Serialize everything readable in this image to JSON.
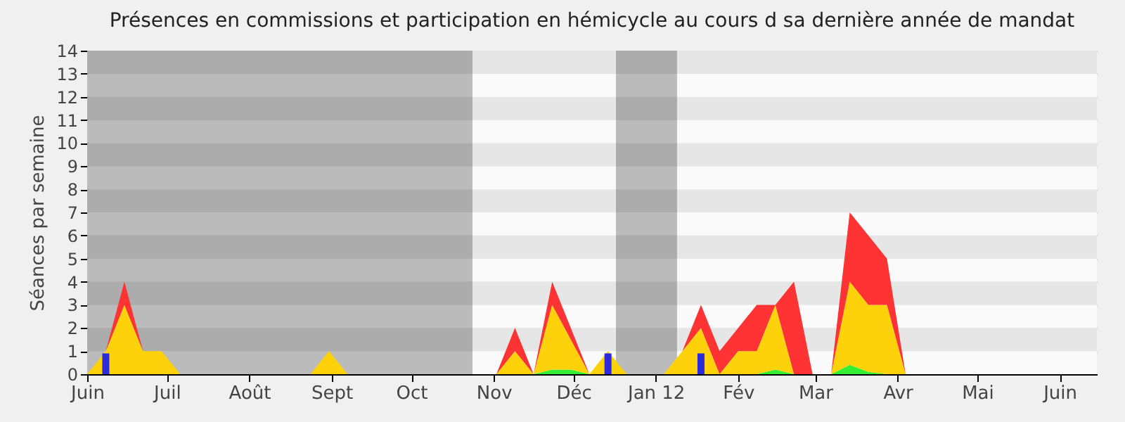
{
  "chart_data": {
    "type": "area",
    "title": "Présences en commissions et participation en hémicycle au cours d sa dernière année de mandat",
    "ylabel": "Séances par semaine",
    "x": [
      "2011-06-01",
      "2011-06-08",
      "2011-06-15",
      "2011-06-22",
      "2011-06-29",
      "2011-07-06",
      "2011-07-13",
      "2011-07-20",
      "2011-07-27",
      "2011-08-03",
      "2011-08-10",
      "2011-08-17",
      "2011-08-24",
      "2011-08-31",
      "2011-09-07",
      "2011-09-14",
      "2011-09-21",
      "2011-09-28",
      "2011-10-05",
      "2011-10-12",
      "2011-10-19",
      "2011-10-26",
      "2011-11-02",
      "2011-11-09",
      "2011-11-16",
      "2011-11-23",
      "2011-11-30",
      "2011-12-07",
      "2011-12-14",
      "2011-12-21",
      "2011-12-28",
      "2012-01-04",
      "2012-01-11",
      "2012-01-18",
      "2012-01-25",
      "2012-02-01",
      "2012-02-08",
      "2012-02-15",
      "2012-02-22",
      "2012-02-29",
      "2012-03-07",
      "2012-03-14",
      "2012-03-21",
      "2012-03-28",
      "2012-04-04",
      "2012-04-11",
      "2012-04-18",
      "2012-04-25",
      "2012-05-02",
      "2012-05-09",
      "2012-05-16",
      "2012-05-23",
      "2012-05-30",
      "2012-06-06",
      "2012-06-13"
    ],
    "stacked": true,
    "series": [
      {
        "color": "#33ee33",
        "values": [
          0,
          0,
          0,
          0,
          0,
          0,
          0,
          0,
          0,
          0,
          0,
          0,
          0,
          0,
          0,
          0,
          0,
          0,
          0,
          0,
          0,
          0,
          0,
          0,
          0,
          0.2,
          0.2,
          0,
          0,
          0,
          0,
          0,
          0,
          0,
          0,
          0,
          0,
          0.2,
          0,
          0,
          0,
          0.4,
          0.1,
          0,
          0,
          0,
          0,
          0,
          0,
          0,
          0,
          0,
          0,
          0,
          0
        ]
      },
      {
        "color": "#fdd20a",
        "values": [
          0,
          1,
          3,
          1,
          1,
          0,
          0,
          0,
          0,
          0,
          0,
          0,
          0,
          1,
          0,
          0,
          0,
          0,
          0,
          0,
          0,
          0,
          0,
          1,
          0,
          2.8,
          1.3,
          0,
          1,
          0,
          0,
          0,
          1,
          2,
          0,
          1,
          1,
          2.8,
          0,
          0,
          0,
          3.6,
          2.9,
          3,
          0,
          0,
          0,
          0,
          0,
          0,
          0,
          0,
          0,
          0,
          0
        ]
      },
      {
        "color": "#ff3333",
        "values": [
          0,
          0,
          1,
          0,
          0,
          0,
          0,
          0,
          0,
          0,
          0,
          0,
          0,
          0,
          0,
          0,
          0,
          0,
          0,
          0,
          0,
          0,
          0,
          1,
          0,
          1,
          0.5,
          0,
          0,
          0,
          0,
          0,
          0,
          1,
          1,
          1,
          2,
          0,
          4,
          0,
          0,
          3,
          3,
          2,
          0,
          0,
          0,
          0,
          0,
          0,
          0,
          0,
          0,
          0,
          0
        ]
      },
      {
        "type": "bar",
        "color": "#2b2bdd",
        "values": [
          null,
          0.9,
          null,
          null,
          null,
          null,
          null,
          null,
          null,
          null,
          null,
          null,
          null,
          null,
          null,
          null,
          null,
          null,
          null,
          null,
          null,
          null,
          null,
          null,
          null,
          null,
          null,
          null,
          0.9,
          null,
          null,
          null,
          null,
          0.9,
          null,
          null,
          null,
          null,
          null,
          null,
          null,
          null,
          null,
          null,
          null,
          null,
          null,
          null,
          null,
          null,
          null,
          null,
          null,
          null,
          null
        ]
      }
    ],
    "xlim": [
      "2011-06-01",
      "2012-06-15"
    ],
    "xticks": [
      {
        "value": "2011-06-01",
        "label": "Juin"
      },
      {
        "value": "2011-07-01",
        "label": "Juil"
      },
      {
        "value": "2011-08-01",
        "label": "Août"
      },
      {
        "value": "2011-09-01",
        "label": "Sept"
      },
      {
        "value": "2011-10-01",
        "label": "Oct"
      },
      {
        "value": "2011-11-01",
        "label": "Nov"
      },
      {
        "value": "2011-12-01",
        "label": "Déc"
      },
      {
        "value": "2012-01-01",
        "label": "Jan 12"
      },
      {
        "value": "2012-02-01",
        "label": "Fév"
      },
      {
        "value": "2012-03-01",
        "label": "Mar"
      },
      {
        "value": "2012-04-01",
        "label": "Avr"
      },
      {
        "value": "2012-05-01",
        "label": "Mai"
      },
      {
        "value": "2012-06-01",
        "label": "Juin"
      }
    ],
    "ylim": [
      0,
      14
    ],
    "yticks": [
      0,
      1,
      2,
      3,
      4,
      5,
      6,
      7,
      8,
      9,
      10,
      11,
      12,
      13,
      14
    ],
    "grid": "y",
    "bands": [
      {
        "axis": "x",
        "from": "2011-06-01",
        "to": "2011-10-24"
      },
      {
        "axis": "x",
        "from": "2011-12-17",
        "to": "2012-01-09"
      }
    ]
  }
}
